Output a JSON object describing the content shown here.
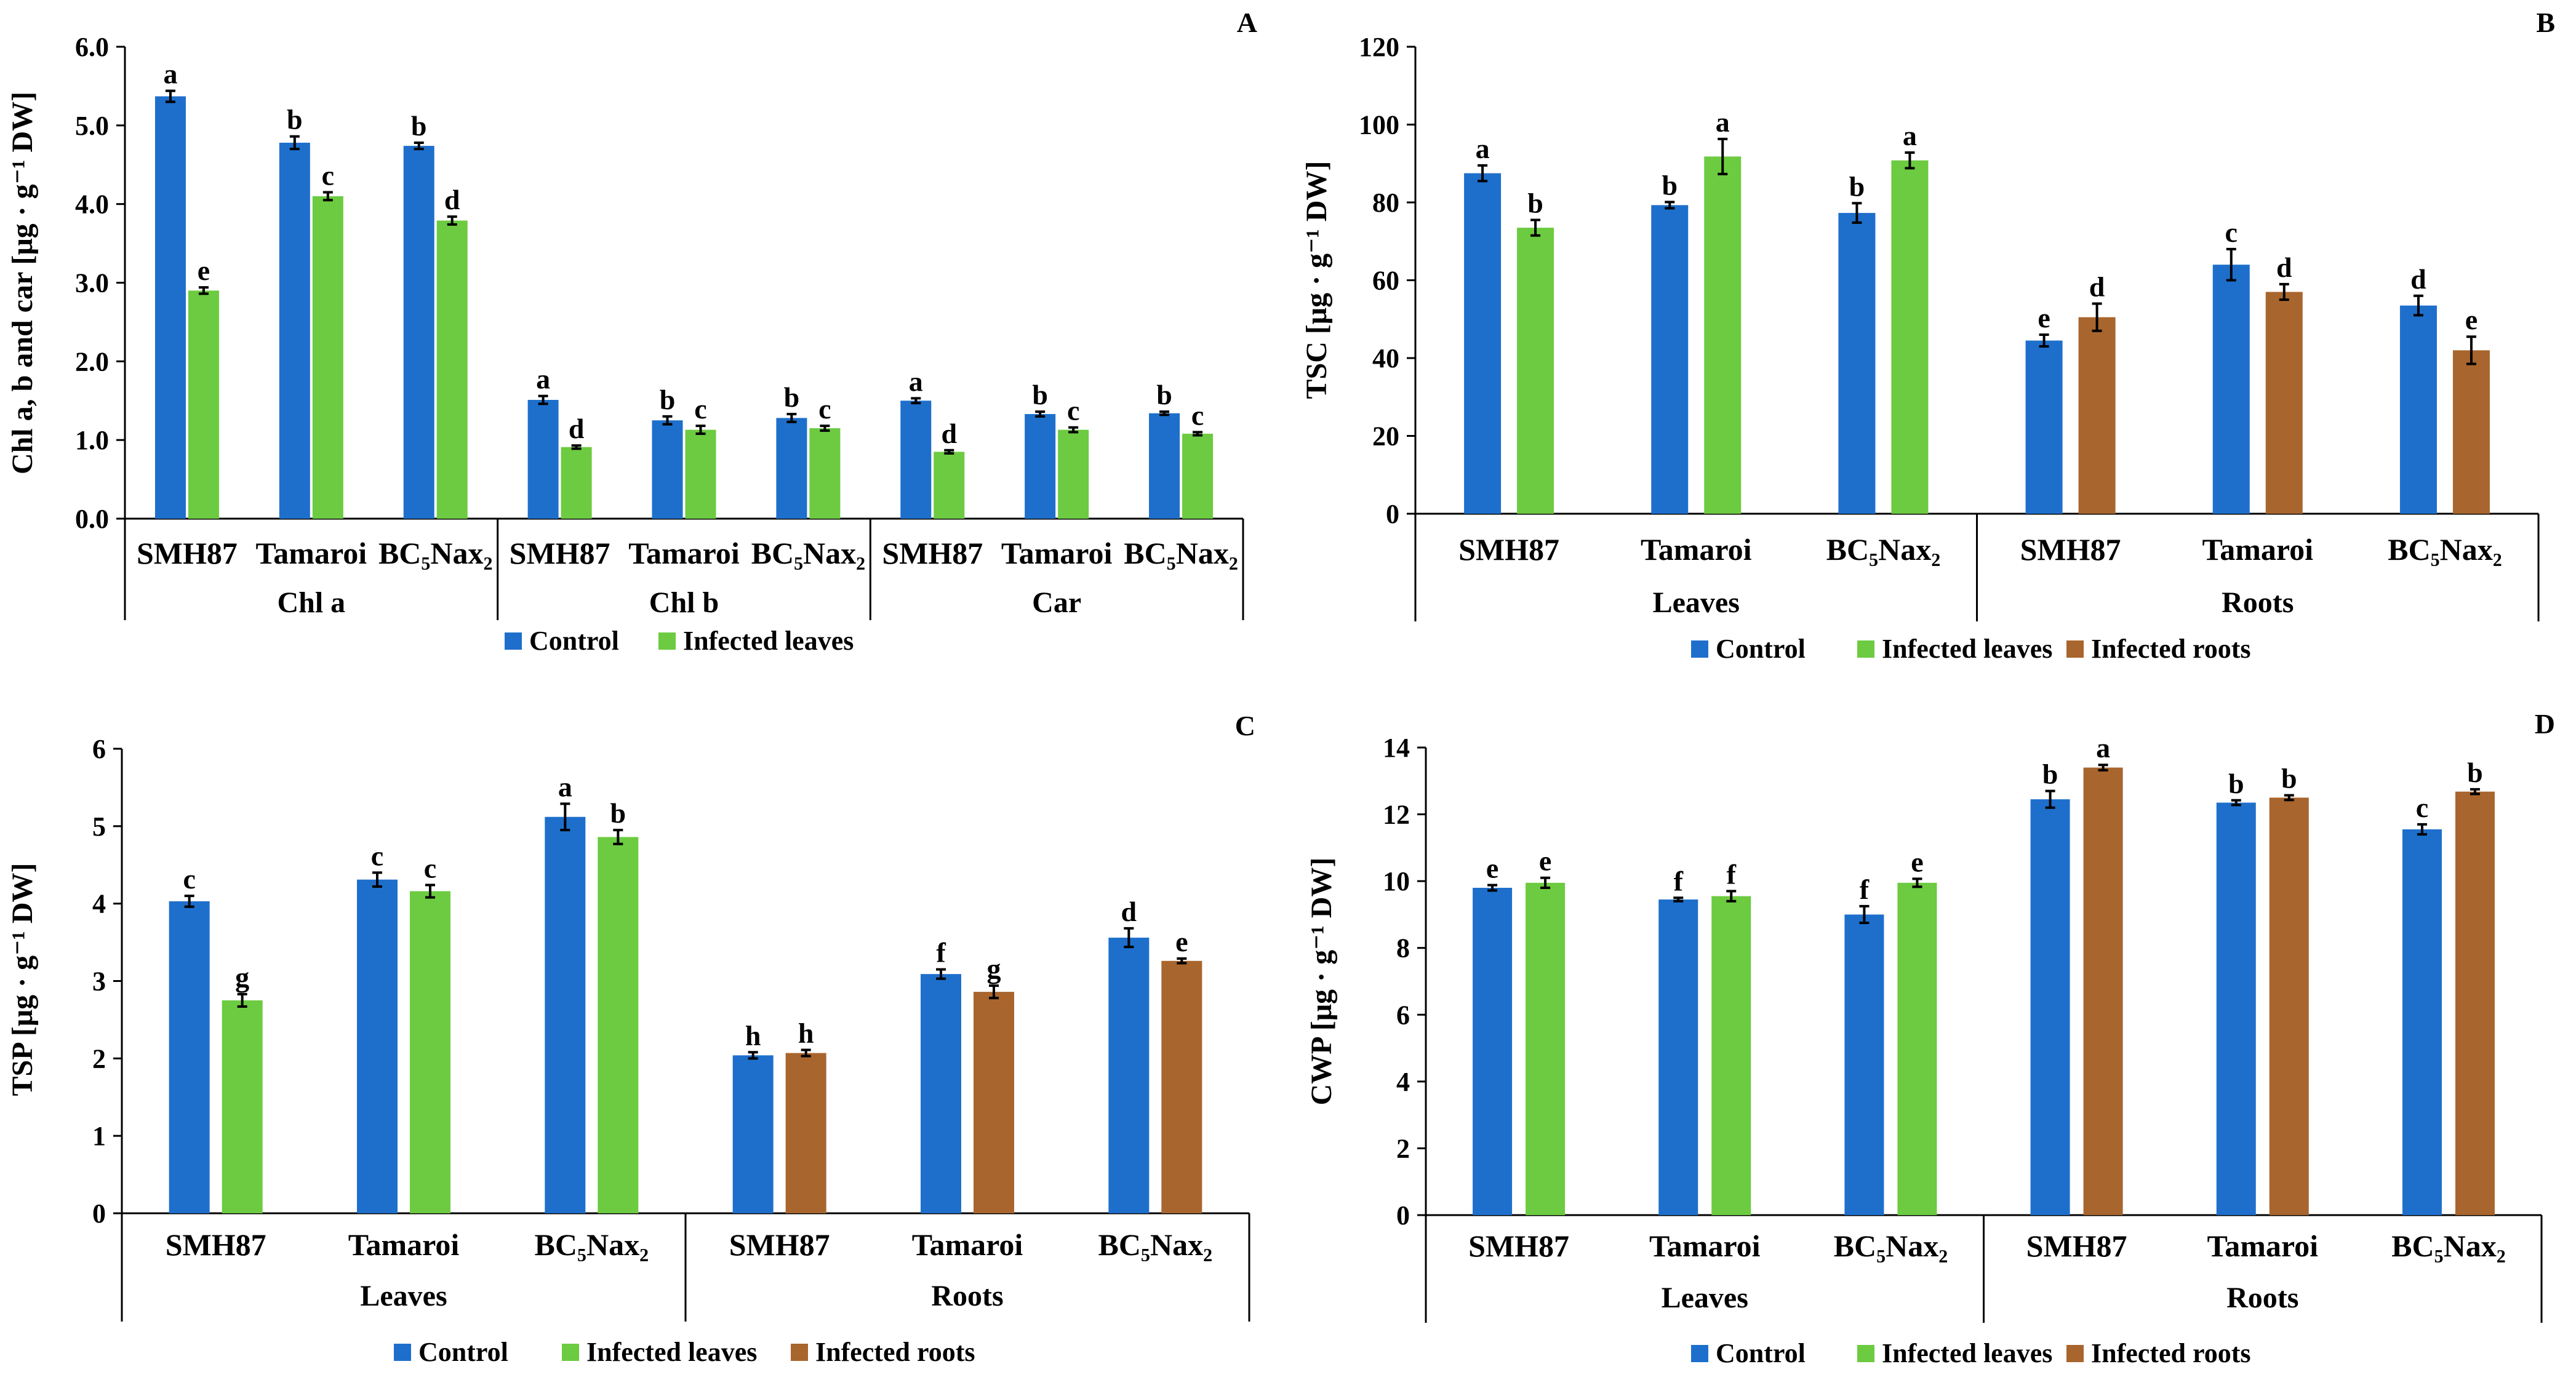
{
  "colors": {
    "control": "#1E6FCC",
    "infected_leaves": "#6CCB40",
    "infected_roots": "#A8652D",
    "axis": "#000000"
  },
  "chart_data": [
    {
      "panel": "A",
      "type": "bar",
      "ylabel": "Chl a, b and car [μg · g⁻¹ DW]",
      "ylim": [
        0,
        6
      ],
      "yticks": [
        "0.0",
        "1.0",
        "2.0",
        "3.0",
        "4.0",
        "5.0",
        "6.0"
      ],
      "groups": [
        {
          "name": "Chl a",
          "categories": [
            {
              "label": "SMH87",
              "bars": [
                {
                  "series": "Control",
                  "value": 5.37,
                  "err": 0.07,
                  "letter": "a"
                },
                {
                  "series": "Infected leaves",
                  "value": 2.9,
                  "err": 0.04,
                  "letter": "e"
                }
              ]
            },
            {
              "label": "Tamaroi",
              "bars": [
                {
                  "series": "Control",
                  "value": 4.78,
                  "err": 0.08,
                  "letter": "b"
                },
                {
                  "series": "Infected leaves",
                  "value": 4.1,
                  "err": 0.05,
                  "letter": "c"
                }
              ]
            },
            {
              "label": "BC₅Nax₂",
              "bars": [
                {
                  "series": "Control",
                  "value": 4.74,
                  "err": 0.04,
                  "letter": "b"
                },
                {
                  "series": "Infected leaves",
                  "value": 3.79,
                  "err": 0.05,
                  "letter": "d"
                }
              ]
            }
          ]
        },
        {
          "name": "Chl b",
          "categories": [
            {
              "label": "SMH87",
              "bars": [
                {
                  "series": "Control",
                  "value": 1.51,
                  "err": 0.05,
                  "letter": "a"
                },
                {
                  "series": "Infected leaves",
                  "value": 0.91,
                  "err": 0.02,
                  "letter": "d"
                }
              ]
            },
            {
              "label": "Tamaroi",
              "bars": [
                {
                  "series": "Control",
                  "value": 1.25,
                  "err": 0.05,
                  "letter": "b"
                },
                {
                  "series": "Infected leaves",
                  "value": 1.13,
                  "err": 0.05,
                  "letter": "c"
                }
              ]
            },
            {
              "label": "BC₅Nax₂",
              "bars": [
                {
                  "series": "Control",
                  "value": 1.28,
                  "err": 0.05,
                  "letter": "b"
                },
                {
                  "series": "Infected leaves",
                  "value": 1.15,
                  "err": 0.03,
                  "letter": "c"
                }
              ]
            }
          ]
        },
        {
          "name": "Car",
          "categories": [
            {
              "label": "SMH87",
              "bars": [
                {
                  "series": "Control",
                  "value": 1.5,
                  "err": 0.03,
                  "letter": "a"
                },
                {
                  "series": "Infected leaves",
                  "value": 0.85,
                  "err": 0.02,
                  "letter": "d"
                }
              ]
            },
            {
              "label": "Tamaroi",
              "bars": [
                {
                  "series": "Control",
                  "value": 1.33,
                  "err": 0.03,
                  "letter": "b"
                },
                {
                  "series": "Infected leaves",
                  "value": 1.13,
                  "err": 0.03,
                  "letter": "c"
                }
              ]
            },
            {
              "label": "BC₅Nax₂",
              "bars": [
                {
                  "series": "Control",
                  "value": 1.34,
                  "err": 0.02,
                  "letter": "b"
                },
                {
                  "series": "Infected leaves",
                  "value": 1.08,
                  "err": 0.02,
                  "letter": "c"
                }
              ]
            }
          ]
        }
      ],
      "legend": [
        "Control",
        "Infected leaves"
      ]
    },
    {
      "panel": "B",
      "type": "bar",
      "ylabel": "TSC [μg · g⁻¹ DW]",
      "ylim": [
        0,
        120
      ],
      "yticks": [
        "0",
        "20",
        "40",
        "60",
        "80",
        "100",
        "120"
      ],
      "groups": [
        {
          "name": "Leaves",
          "categories": [
            {
              "label": "SMH87",
              "bars": [
                {
                  "series": "Control",
                  "value": 87.5,
                  "err": 2.0,
                  "letter": "a"
                },
                {
                  "series": "Infected leaves",
                  "value": 73.5,
                  "err": 2.0,
                  "letter": "b"
                }
              ]
            },
            {
              "label": "Tamaroi",
              "bars": [
                {
                  "series": "Control",
                  "value": 79.3,
                  "err": 0.8,
                  "letter": "b"
                },
                {
                  "series": "Infected leaves",
                  "value": 91.8,
                  "err": 4.5,
                  "letter": "a"
                }
              ]
            },
            {
              "label": "BC₅Nax₂",
              "bars": [
                {
                  "series": "Control",
                  "value": 77.3,
                  "err": 2.5,
                  "letter": "b"
                },
                {
                  "series": "Infected leaves",
                  "value": 90.8,
                  "err": 2.0,
                  "letter": "a"
                }
              ]
            }
          ]
        },
        {
          "name": "Roots",
          "categories": [
            {
              "label": "SMH87",
              "bars": [
                {
                  "series": "Control",
                  "value": 44.5,
                  "err": 1.5,
                  "letter": "e"
                },
                {
                  "series": "Infected roots",
                  "value": 50.5,
                  "err": 3.5,
                  "letter": "d"
                }
              ]
            },
            {
              "label": "Tamaroi",
              "bars": [
                {
                  "series": "Control",
                  "value": 64.0,
                  "err": 4.0,
                  "letter": "c"
                },
                {
                  "series": "Infected roots",
                  "value": 57.0,
                  "err": 2.0,
                  "letter": "d"
                }
              ]
            },
            {
              "label": "BC₅Nax₂",
              "bars": [
                {
                  "series": "Control",
                  "value": 53.5,
                  "err": 2.5,
                  "letter": "d"
                },
                {
                  "series": "Infected roots",
                  "value": 42.0,
                  "err": 3.5,
                  "letter": "e"
                }
              ]
            }
          ]
        }
      ],
      "legend": [
        "Control",
        "Infected leaves",
        "Infected roots"
      ]
    },
    {
      "panel": "C",
      "type": "bar",
      "ylabel": "TSP [μg · g⁻¹ DW]",
      "ylim": [
        0,
        6
      ],
      "yticks": [
        "0",
        "1",
        "2",
        "3",
        "4",
        "5",
        "6"
      ],
      "groups": [
        {
          "name": "Leaves",
          "categories": [
            {
              "label": "SMH87",
              "bars": [
                {
                  "series": "Control",
                  "value": 4.03,
                  "err": 0.07,
                  "letter": "c"
                },
                {
                  "series": "Infected leaves",
                  "value": 2.75,
                  "err": 0.08,
                  "letter": "g"
                }
              ]
            },
            {
              "label": "Tamaroi",
              "bars": [
                {
                  "series": "Control",
                  "value": 4.31,
                  "err": 0.09,
                  "letter": "c"
                },
                {
                  "series": "Infected leaves",
                  "value": 4.16,
                  "err": 0.08,
                  "letter": "c"
                }
              ]
            },
            {
              "label": "BC₅Nax₂",
              "bars": [
                {
                  "series": "Control",
                  "value": 5.12,
                  "err": 0.17,
                  "letter": "a"
                },
                {
                  "series": "Infected leaves",
                  "value": 4.86,
                  "err": 0.09,
                  "letter": "b"
                }
              ]
            }
          ]
        },
        {
          "name": "Roots",
          "categories": [
            {
              "label": "SMH87",
              "bars": [
                {
                  "series": "Control",
                  "value": 2.04,
                  "err": 0.04,
                  "letter": "h"
                },
                {
                  "series": "Infected roots",
                  "value": 2.07,
                  "err": 0.04,
                  "letter": "h"
                }
              ]
            },
            {
              "label": "Tamaroi",
              "bars": [
                {
                  "series": "Control",
                  "value": 3.09,
                  "err": 0.06,
                  "letter": "f"
                },
                {
                  "series": "Infected roots",
                  "value": 2.86,
                  "err": 0.08,
                  "letter": "g"
                }
              ]
            },
            {
              "label": "BC₅Nax₂",
              "bars": [
                {
                  "series": "Control",
                  "value": 3.56,
                  "err": 0.12,
                  "letter": "d"
                },
                {
                  "series": "Infected roots",
                  "value": 3.26,
                  "err": 0.03,
                  "letter": "e"
                }
              ]
            }
          ]
        }
      ],
      "legend": [
        "Control",
        "Infected leaves",
        "Infected roots"
      ]
    },
    {
      "panel": "D",
      "type": "bar",
      "ylabel": "CWP [μg · g⁻¹ DW]",
      "ylim": [
        0,
        14
      ],
      "yticks": [
        "0",
        "2",
        "4",
        "6",
        "8",
        "10",
        "12",
        "14"
      ],
      "groups": [
        {
          "name": "Leaves",
          "categories": [
            {
              "label": "SMH87",
              "bars": [
                {
                  "series": "Control",
                  "value": 9.8,
                  "err": 0.08,
                  "letter": "e"
                },
                {
                  "series": "Infected leaves",
                  "value": 9.95,
                  "err": 0.15,
                  "letter": "e"
                }
              ]
            },
            {
              "label": "Tamaroi",
              "bars": [
                {
                  "series": "Control",
                  "value": 9.45,
                  "err": 0.05,
                  "letter": "f"
                },
                {
                  "series": "Infected leaves",
                  "value": 9.55,
                  "err": 0.15,
                  "letter": "f"
                }
              ]
            },
            {
              "label": "BC₅Nax₂",
              "bars": [
                {
                  "series": "Control",
                  "value": 9.0,
                  "err": 0.25,
                  "letter": "f"
                },
                {
                  "series": "Infected leaves",
                  "value": 9.95,
                  "err": 0.12,
                  "letter": "e"
                }
              ]
            }
          ]
        },
        {
          "name": "Roots",
          "categories": [
            {
              "label": "SMH87",
              "bars": [
                {
                  "series": "Control",
                  "value": 12.45,
                  "err": 0.25,
                  "letter": "b"
                },
                {
                  "series": "Infected roots",
                  "value": 13.4,
                  "err": 0.08,
                  "letter": "a"
                }
              ]
            },
            {
              "label": "Tamaroi",
              "bars": [
                {
                  "series": "Control",
                  "value": 12.35,
                  "err": 0.07,
                  "letter": "b"
                },
                {
                  "series": "Infected roots",
                  "value": 12.5,
                  "err": 0.07,
                  "letter": "b"
                }
              ]
            },
            {
              "label": "BC₅Nax₂",
              "bars": [
                {
                  "series": "Control",
                  "value": 11.55,
                  "err": 0.15,
                  "letter": "c"
                },
                {
                  "series": "Infected roots",
                  "value": 12.68,
                  "err": 0.07,
                  "letter": "b"
                }
              ]
            }
          ]
        }
      ],
      "legend": [
        "Control",
        "Infected leaves",
        "Infected roots"
      ]
    }
  ]
}
